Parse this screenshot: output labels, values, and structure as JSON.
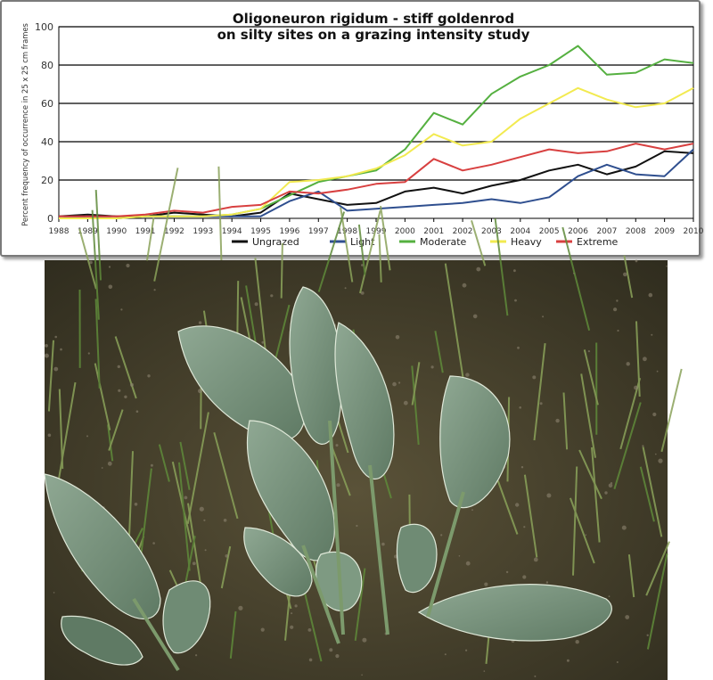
{
  "chart_data": {
    "type": "line",
    "title_line1": "Oligoneuron rigidum  -  stiff goldenrod",
    "title_line2": "on silty sites on a grazing intensity study",
    "xlabel": "",
    "ylabel": "Percent frequency of occurrence in 25 x 25 cm frames",
    "ylim": [
      0,
      100
    ],
    "yticks": [
      "0",
      "20",
      "40",
      "60",
      "80",
      "100"
    ],
    "x": [
      "1988",
      "1989",
      "1990",
      "1991",
      "1992",
      "1993",
      "1994",
      "1995",
      "1996",
      "1997",
      "1998",
      "1999",
      "2000",
      "2001",
      "2002",
      "2003",
      "2004",
      "2005",
      "2006",
      "2007",
      "2008",
      "2009",
      "2010"
    ],
    "grid": true,
    "legend_position": "bottom",
    "series": [
      {
        "name": "Ungrazed",
        "color": "#111111",
        "values": [
          1,
          2,
          1,
          1,
          3,
          2,
          1,
          3,
          13,
          10,
          7,
          8,
          14,
          16,
          13,
          17,
          20,
          25,
          28,
          23,
          27,
          35,
          34
        ]
      },
      {
        "name": "Light",
        "color": "#2f4f8f",
        "values": [
          0,
          1,
          0,
          1,
          1,
          1,
          1,
          1,
          9,
          14,
          4,
          5,
          6,
          7,
          8,
          10,
          8,
          11,
          22,
          28,
          23,
          22,
          36
        ]
      },
      {
        "name": "Moderate",
        "color": "#55b040",
        "values": [
          0,
          0,
          0,
          1,
          1,
          1,
          2,
          5,
          12,
          19,
          22,
          25,
          36,
          55,
          49,
          65,
          74,
          80,
          90,
          75,
          76,
          83,
          81
        ]
      },
      {
        "name": "Heavy",
        "color": "#f2ea50",
        "values": [
          0,
          0,
          0,
          1,
          1,
          1,
          2,
          5,
          19,
          20,
          22,
          26,
          33,
          44,
          38,
          40,
          52,
          60,
          68,
          62,
          58,
          60,
          68
        ]
      },
      {
        "name": "Extreme",
        "color": "#d84040",
        "values": [
          1,
          1,
          1,
          2,
          4,
          3,
          6,
          7,
          14,
          13,
          15,
          18,
          19,
          31,
          25,
          28,
          32,
          36,
          34,
          35,
          39,
          36,
          39
        ]
      }
    ]
  },
  "photo": {
    "subject": "stiff goldenrod basal rosette leaves in grass",
    "colors": {
      "soil": "#4a4430",
      "leaf": "#7e9a82",
      "leaf_dark": "#566f5c",
      "grass": "#5f8a3a"
    }
  }
}
